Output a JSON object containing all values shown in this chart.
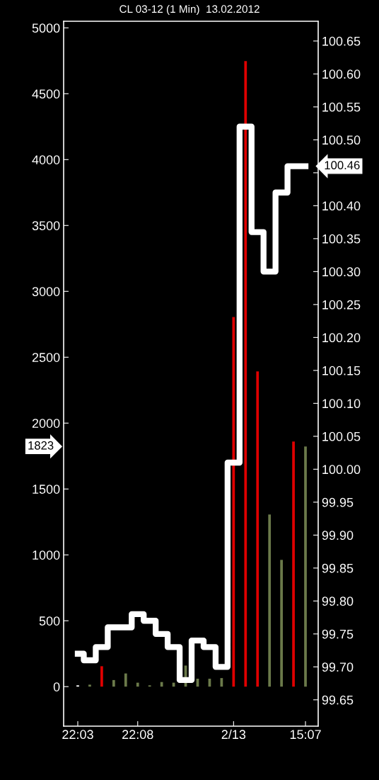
{
  "chart_data": {
    "type": "bar",
    "title": "CL 03-12 (1 Min)  13.02.2012",
    "categories": [
      "22:03",
      null,
      null,
      null,
      null,
      "22:08",
      null,
      null,
      null,
      null,
      null,
      null,
      null,
      "2/13",
      null,
      null,
      null,
      null,
      null,
      "15:07"
    ],
    "series": [
      {
        "values": [
          10,
          15,
          155,
          50,
          100,
          30,
          10,
          35,
          30,
          160,
          60,
          60,
          65,
          2805,
          4747,
          2392,
          1306,
          962,
          1860,
          1823
        ],
        "colors": [
          "#ffffff",
          "#6b7a4a",
          "#e00000",
          "#6b7a4a",
          "#6b7a4a",
          "#6b7a4a",
          "#6b7a4a",
          "#6b7a4a",
          "#6b7a4a",
          "#6b7a4a",
          "#6b7a4a",
          "#6b7a4a",
          "#6b7a4a",
          "#e00000",
          "#e00000",
          "#e00000",
          "#6b7a4a",
          "#6b7a4a",
          "#e00000",
          "#6b7a4a"
        ]
      },
      {
        "type": "step",
        "axis": "y2",
        "color": "#ffffff",
        "values": [
          99.72,
          99.71,
          99.73,
          99.76,
          99.76,
          99.78,
          99.77,
          99.75,
          99.73,
          99.68,
          99.74,
          99.73,
          99.7,
          100.01,
          100.52,
          100.36,
          100.3,
          100.42,
          100.46,
          100.46
        ]
      }
    ],
    "ylim": [
      -300,
      5050
    ],
    "yticks": [
      0,
      500,
      1000,
      1500,
      2000,
      2500,
      3000,
      3500,
      4000,
      4500,
      5000
    ],
    "y2lim": [
      99.61,
      100.68
    ],
    "y2ticks": [
      {
        "value": 99.65,
        "label": "99.65"
      },
      {
        "value": 99.7,
        "label": "99.70"
      },
      {
        "value": 99.75,
        "label": "99.75"
      },
      {
        "value": 99.8,
        "label": "99.80"
      },
      {
        "value": 99.85,
        "label": "99.85"
      },
      {
        "value": 99.9,
        "label": "99.90"
      },
      {
        "value": 99.95,
        "label": "99.95"
      },
      {
        "value": 100.0,
        "label": "100.00"
      },
      {
        "value": 100.05,
        "label": "100.05"
      },
      {
        "value": 100.1,
        "label": "100.10"
      },
      {
        "value": 100.15,
        "label": "100.15"
      },
      {
        "value": 100.2,
        "label": "100.20"
      },
      {
        "value": 100.25,
        "label": "100.25"
      },
      {
        "value": 100.3,
        "label": "100.30"
      },
      {
        "value": 100.35,
        "label": "100.35"
      },
      {
        "value": 100.4,
        "label": "100.40"
      },
      {
        "value": 100.45,
        "label": null
      },
      {
        "value": 100.5,
        "label": "100.50"
      },
      {
        "value": 100.55,
        "label": "100.55"
      },
      {
        "value": 100.6,
        "label": "100.60"
      },
      {
        "value": 100.65,
        "label": "100.65"
      }
    ],
    "annotations": [
      "1823",
      "100.46"
    ],
    "grid": false
  }
}
